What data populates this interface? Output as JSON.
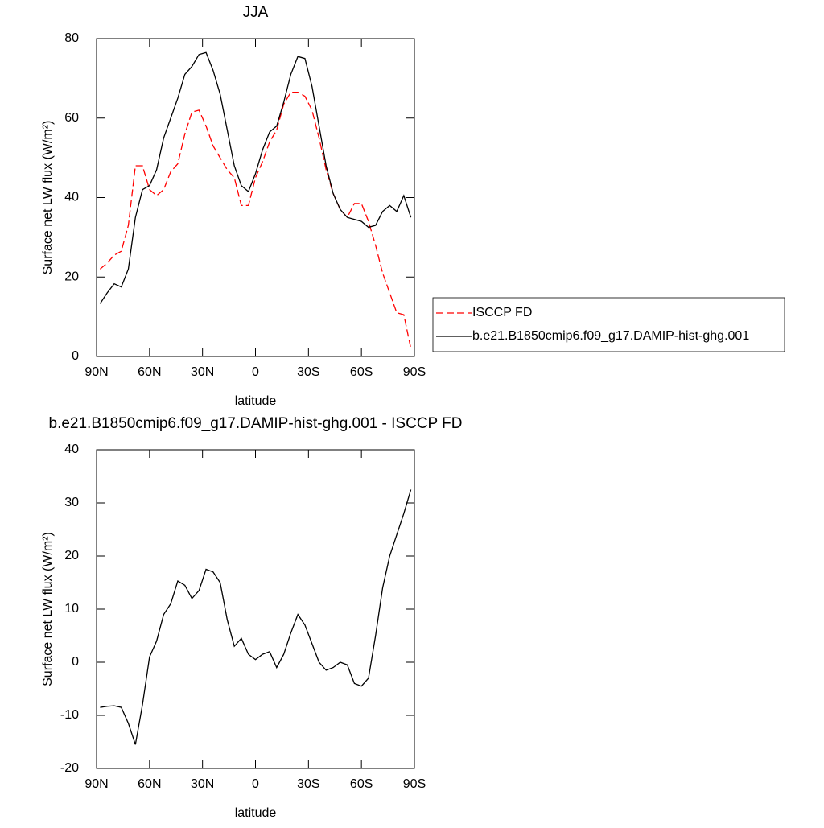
{
  "chart_data": [
    {
      "type": "line",
      "title": "JJA",
      "xlabel": "latitude",
      "ylabel": "Surface net LW flux (W/m²)",
      "x": [
        88,
        84,
        80,
        76,
        72,
        68,
        64,
        60,
        56,
        52,
        48,
        44,
        40,
        36,
        32,
        28,
        24,
        20,
        16,
        12,
        8,
        4,
        0,
        -4,
        -8,
        -12,
        -16,
        -20,
        -24,
        -28,
        -32,
        -36,
        -40,
        -44,
        -48,
        -52,
        -56,
        -60,
        -64,
        -68,
        -72,
        -76,
        -80,
        -84,
        -88
      ],
      "xlim": [
        90,
        -90
      ],
      "xticks": [
        {
          "value": 90,
          "label": "90N"
        },
        {
          "value": 60,
          "label": "60N"
        },
        {
          "value": 30,
          "label": "30N"
        },
        0,
        {
          "value": -30,
          "label": "30S"
        },
        {
          "value": -60,
          "label": "60S"
        },
        {
          "value": -90,
          "label": "90S"
        }
      ],
      "ylim": [
        0,
        80
      ],
      "yticks": [
        0,
        20,
        40,
        60,
        80
      ],
      "legend": "right",
      "series": [
        {
          "name": "ISCCP FD",
          "color": "#ff0000",
          "style": "dashed",
          "values": [
            22,
            23.5,
            25.5,
            26.5,
            33,
            48,
            48,
            42,
            40.5,
            42,
            46.5,
            48.5,
            56,
            61.5,
            62,
            58,
            53,
            50,
            47,
            45,
            38,
            38,
            45,
            49,
            54,
            57,
            63.5,
            66.5,
            66.5,
            65.5,
            62,
            55,
            47,
            41,
            37,
            35,
            38.5,
            38.5,
            34,
            28,
            21,
            16,
            11,
            10.5,
            2
          ]
        },
        {
          "name": "b.e21.B1850cmip6.f09_g17.DAMIP-hist-ghg.001",
          "color": "#000000",
          "style": "solid",
          "values": [
            13.3,
            16,
            18.3,
            17.5,
            22,
            35,
            42,
            43,
            47,
            55,
            60,
            65,
            71,
            73,
            76,
            76.5,
            72,
            66,
            57,
            48,
            43,
            41.5,
            46,
            52,
            56.5,
            58,
            64,
            71,
            75.5,
            75,
            68,
            58,
            48,
            41,
            37,
            35,
            34.5,
            34,
            32.5,
            33,
            36.5,
            38,
            36.5,
            40.5,
            35
          ]
        }
      ]
    },
    {
      "type": "line",
      "title": "b.e21.B1850cmip6.f09_g17.DAMIP-hist-ghg.001 - ISCCP FD",
      "xlabel": "latitude",
      "ylabel": "Surface net LW flux (W/m²)",
      "x": [
        88,
        84,
        80,
        76,
        72,
        68,
        64,
        60,
        56,
        52,
        48,
        44,
        40,
        36,
        32,
        28,
        24,
        20,
        16,
        12,
        8,
        4,
        0,
        -4,
        -8,
        -12,
        -16,
        -20,
        -24,
        -28,
        -32,
        -36,
        -40,
        -44,
        -48,
        -52,
        -56,
        -60,
        -64,
        -68,
        -72,
        -76,
        -80,
        -84,
        -88
      ],
      "xlim": [
        90,
        -90
      ],
      "xticks": [
        {
          "value": 90,
          "label": "90N"
        },
        {
          "value": 60,
          "label": "60N"
        },
        {
          "value": 30,
          "label": "30N"
        },
        0,
        {
          "value": -30,
          "label": "30S"
        },
        {
          "value": -60,
          "label": "60S"
        },
        {
          "value": -90,
          "label": "90S"
        }
      ],
      "ylim": [
        -20,
        40
      ],
      "yticks": [
        -20,
        -10,
        0,
        10,
        20,
        30,
        40
      ],
      "color": "#000000",
      "values": [
        -8.5,
        -8.3,
        -8.2,
        -8.5,
        -11.5,
        -15.5,
        -8,
        1,
        4,
        9,
        11,
        15.3,
        14.5,
        12,
        13.5,
        17.5,
        17,
        15,
        8,
        3,
        4.5,
        1.5,
        0.5,
        1.5,
        2,
        -1,
        1.5,
        5.5,
        9,
        7,
        3.5,
        0,
        -1.5,
        -1,
        0,
        -0.5,
        -4,
        -4.5,
        -3,
        5,
        14,
        20,
        24,
        28,
        32.5
      ]
    }
  ]
}
